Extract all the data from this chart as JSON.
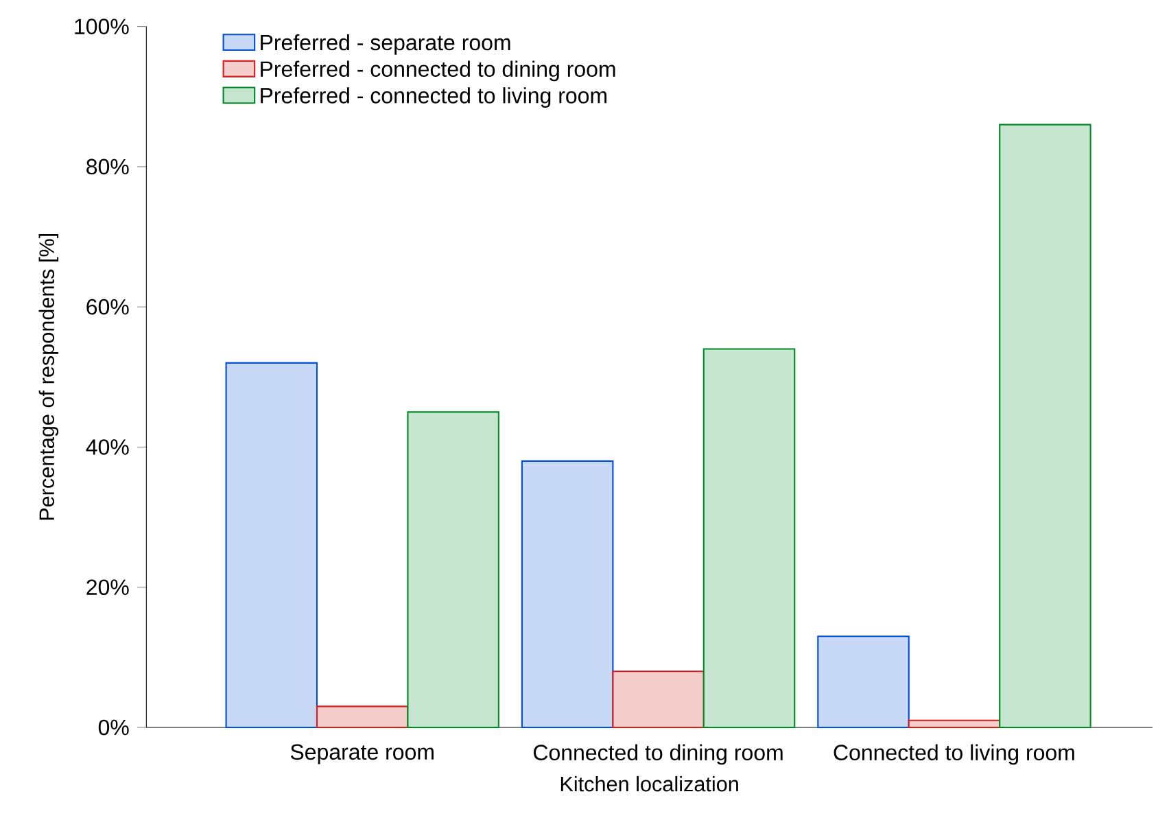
{
  "chart_data": {
    "type": "bar",
    "xlabel": "Kitchen localization",
    "ylabel": "Percentage of respondents [%]",
    "categories": [
      "Separate room",
      "Connected to dining room",
      "Connected to living room"
    ],
    "series": [
      {
        "name": "Preferred - separate room",
        "color": "#0050d8",
        "values": [
          52,
          38,
          13
        ]
      },
      {
        "name": "Preferred - connected to dining room",
        "color": "#d81e1e",
        "values": [
          3,
          8,
          1
        ]
      },
      {
        "name": "Preferred - connected to living room",
        "color": "#008c28",
        "values": [
          45,
          54,
          86
        ]
      }
    ],
    "ylim": [
      0,
      100
    ],
    "yticks": [
      {
        "value": 0,
        "label": "0%"
      },
      {
        "value": 20,
        "label": "20%"
      },
      {
        "value": 40,
        "label": "40%"
      },
      {
        "value": 60,
        "label": "60%"
      },
      {
        "value": 80,
        "label": "80%"
      },
      {
        "value": 100,
        "label": "100%"
      }
    ],
    "grid": false,
    "legend": "top left"
  }
}
